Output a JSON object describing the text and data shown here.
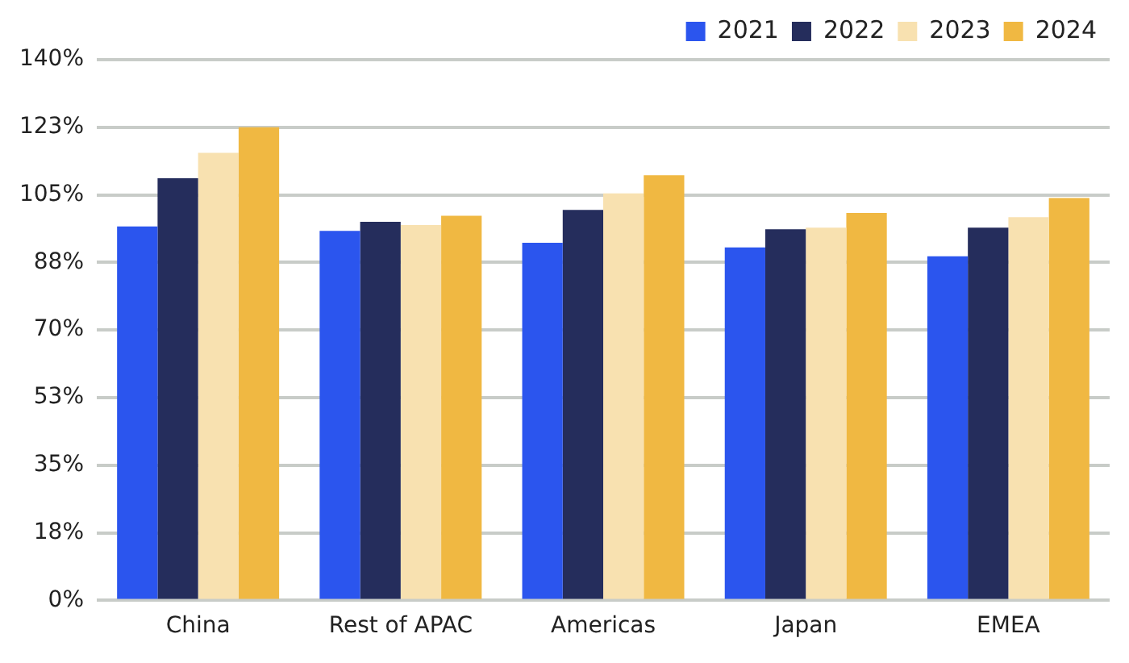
{
  "chart_data": {
    "type": "bar",
    "categories": [
      "China",
      "Rest of APAC",
      "Americas",
      "Japan",
      "EMEA"
    ],
    "series": [
      {
        "name": "2021",
        "color": "#2b55ee",
        "values": [
          96.8,
          95.7,
          92.6,
          91.4,
          89.1
        ]
      },
      {
        "name": "2022",
        "color": "#252d5c",
        "values": [
          109.3,
          98,
          101.1,
          96.1,
          96.5
        ]
      },
      {
        "name": "2023",
        "color": "#f8e1b0",
        "values": [
          115.9,
          97.2,
          105.4,
          96.5,
          99.2
        ]
      },
      {
        "name": "2024",
        "color": "#f0b842",
        "values": [
          122.5,
          99.6,
          110.1,
          100.3,
          104.2
        ]
      }
    ],
    "ylim": [
      0,
      140
    ],
    "yticks": [
      {
        "value": 0,
        "label": "0%"
      },
      {
        "value": 17.5,
        "label": "18%"
      },
      {
        "value": 35,
        "label": "35%"
      },
      {
        "value": 52.5,
        "label": "53%"
      },
      {
        "value": 70,
        "label": "70%"
      },
      {
        "value": 87.5,
        "label": "88%"
      },
      {
        "value": 105,
        "label": "105%"
      },
      {
        "value": 122.5,
        "label": "123%"
      },
      {
        "value": 140,
        "label": "140%"
      }
    ],
    "grid": "y",
    "legend": "top right"
  }
}
